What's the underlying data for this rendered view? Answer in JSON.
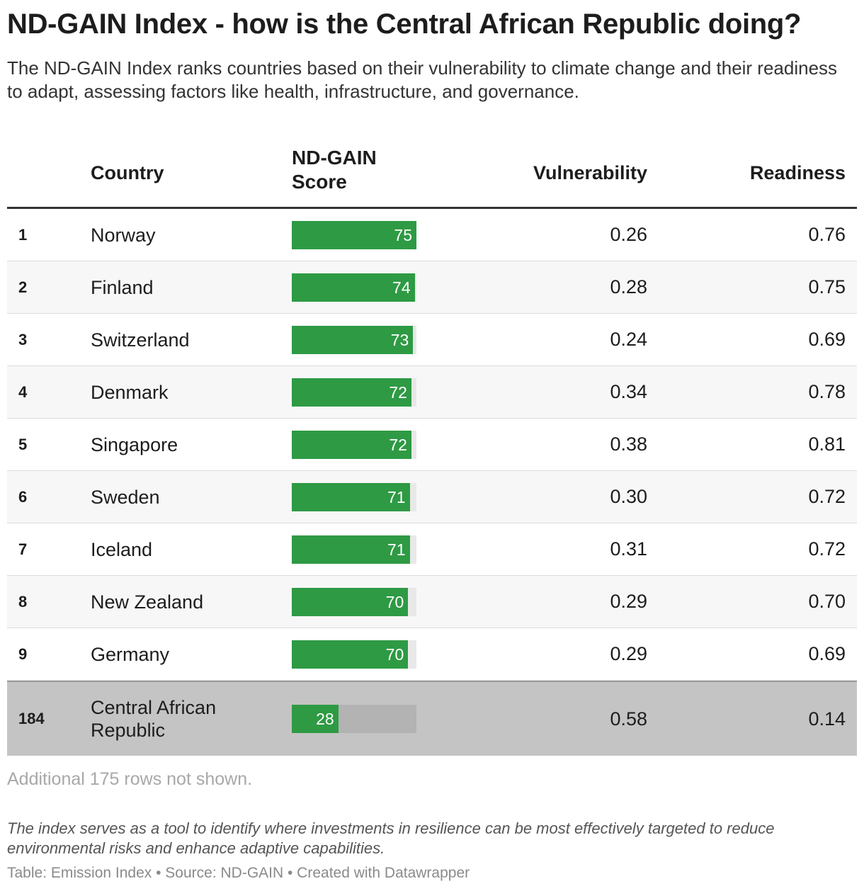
{
  "title": "ND-GAIN Index - how is the Central African Republic doing?",
  "description": "The ND-GAIN Index ranks countries based on their vulnerability to climate change and their readiness to adapt, assessing factors like health, infrastructure, and governance.",
  "columns": {
    "country": "Country",
    "score": "ND-GAIN Score",
    "vulnerability": "Vulnerability",
    "readiness": "Readiness"
  },
  "colors": {
    "bar": "#2e9a44",
    "highlight_row": "#c4c4c4"
  },
  "chart_data": {
    "type": "table",
    "score_range": [
      0,
      75
    ],
    "rows": [
      {
        "rank": "1",
        "country": "Norway",
        "score": 75,
        "score_label": "75",
        "vulnerability": "0.26",
        "readiness": "0.76",
        "highlight": false
      },
      {
        "rank": "2",
        "country": "Finland",
        "score": 74,
        "score_label": "74",
        "vulnerability": "0.28",
        "readiness": "0.75",
        "highlight": false
      },
      {
        "rank": "3",
        "country": "Switzerland",
        "score": 73,
        "score_label": "73",
        "vulnerability": "0.24",
        "readiness": "0.69",
        "highlight": false
      },
      {
        "rank": "4",
        "country": "Denmark",
        "score": 72,
        "score_label": "72",
        "vulnerability": "0.34",
        "readiness": "0.78",
        "highlight": false
      },
      {
        "rank": "5",
        "country": "Singapore",
        "score": 72,
        "score_label": "72",
        "vulnerability": "0.38",
        "readiness": "0.81",
        "highlight": false
      },
      {
        "rank": "6",
        "country": "Sweden",
        "score": 71,
        "score_label": "71",
        "vulnerability": "0.30",
        "readiness": "0.72",
        "highlight": false
      },
      {
        "rank": "7",
        "country": "Iceland",
        "score": 71,
        "score_label": "71",
        "vulnerability": "0.31",
        "readiness": "0.72",
        "highlight": false
      },
      {
        "rank": "8",
        "country": "New Zealand",
        "score": 70,
        "score_label": "70",
        "vulnerability": "0.29",
        "readiness": "0.70",
        "highlight": false
      },
      {
        "rank": "9",
        "country": "Germany",
        "score": 70,
        "score_label": "70",
        "vulnerability": "0.29",
        "readiness": "0.69",
        "highlight": false
      },
      {
        "rank": "184",
        "country": "Central African Republic",
        "score": 28,
        "score_label": "28",
        "vulnerability": "0.58",
        "readiness": "0.14",
        "highlight": true
      }
    ]
  },
  "more_rows": "Additional 175 rows not shown.",
  "notes": "The index serves as a tool to identify where investments in resilience can be most effectively targeted to reduce environmental risks and enhance adaptive capabilities.",
  "source": "Table: Emission Index • Source: ND-GAIN • Created with Datawrapper"
}
